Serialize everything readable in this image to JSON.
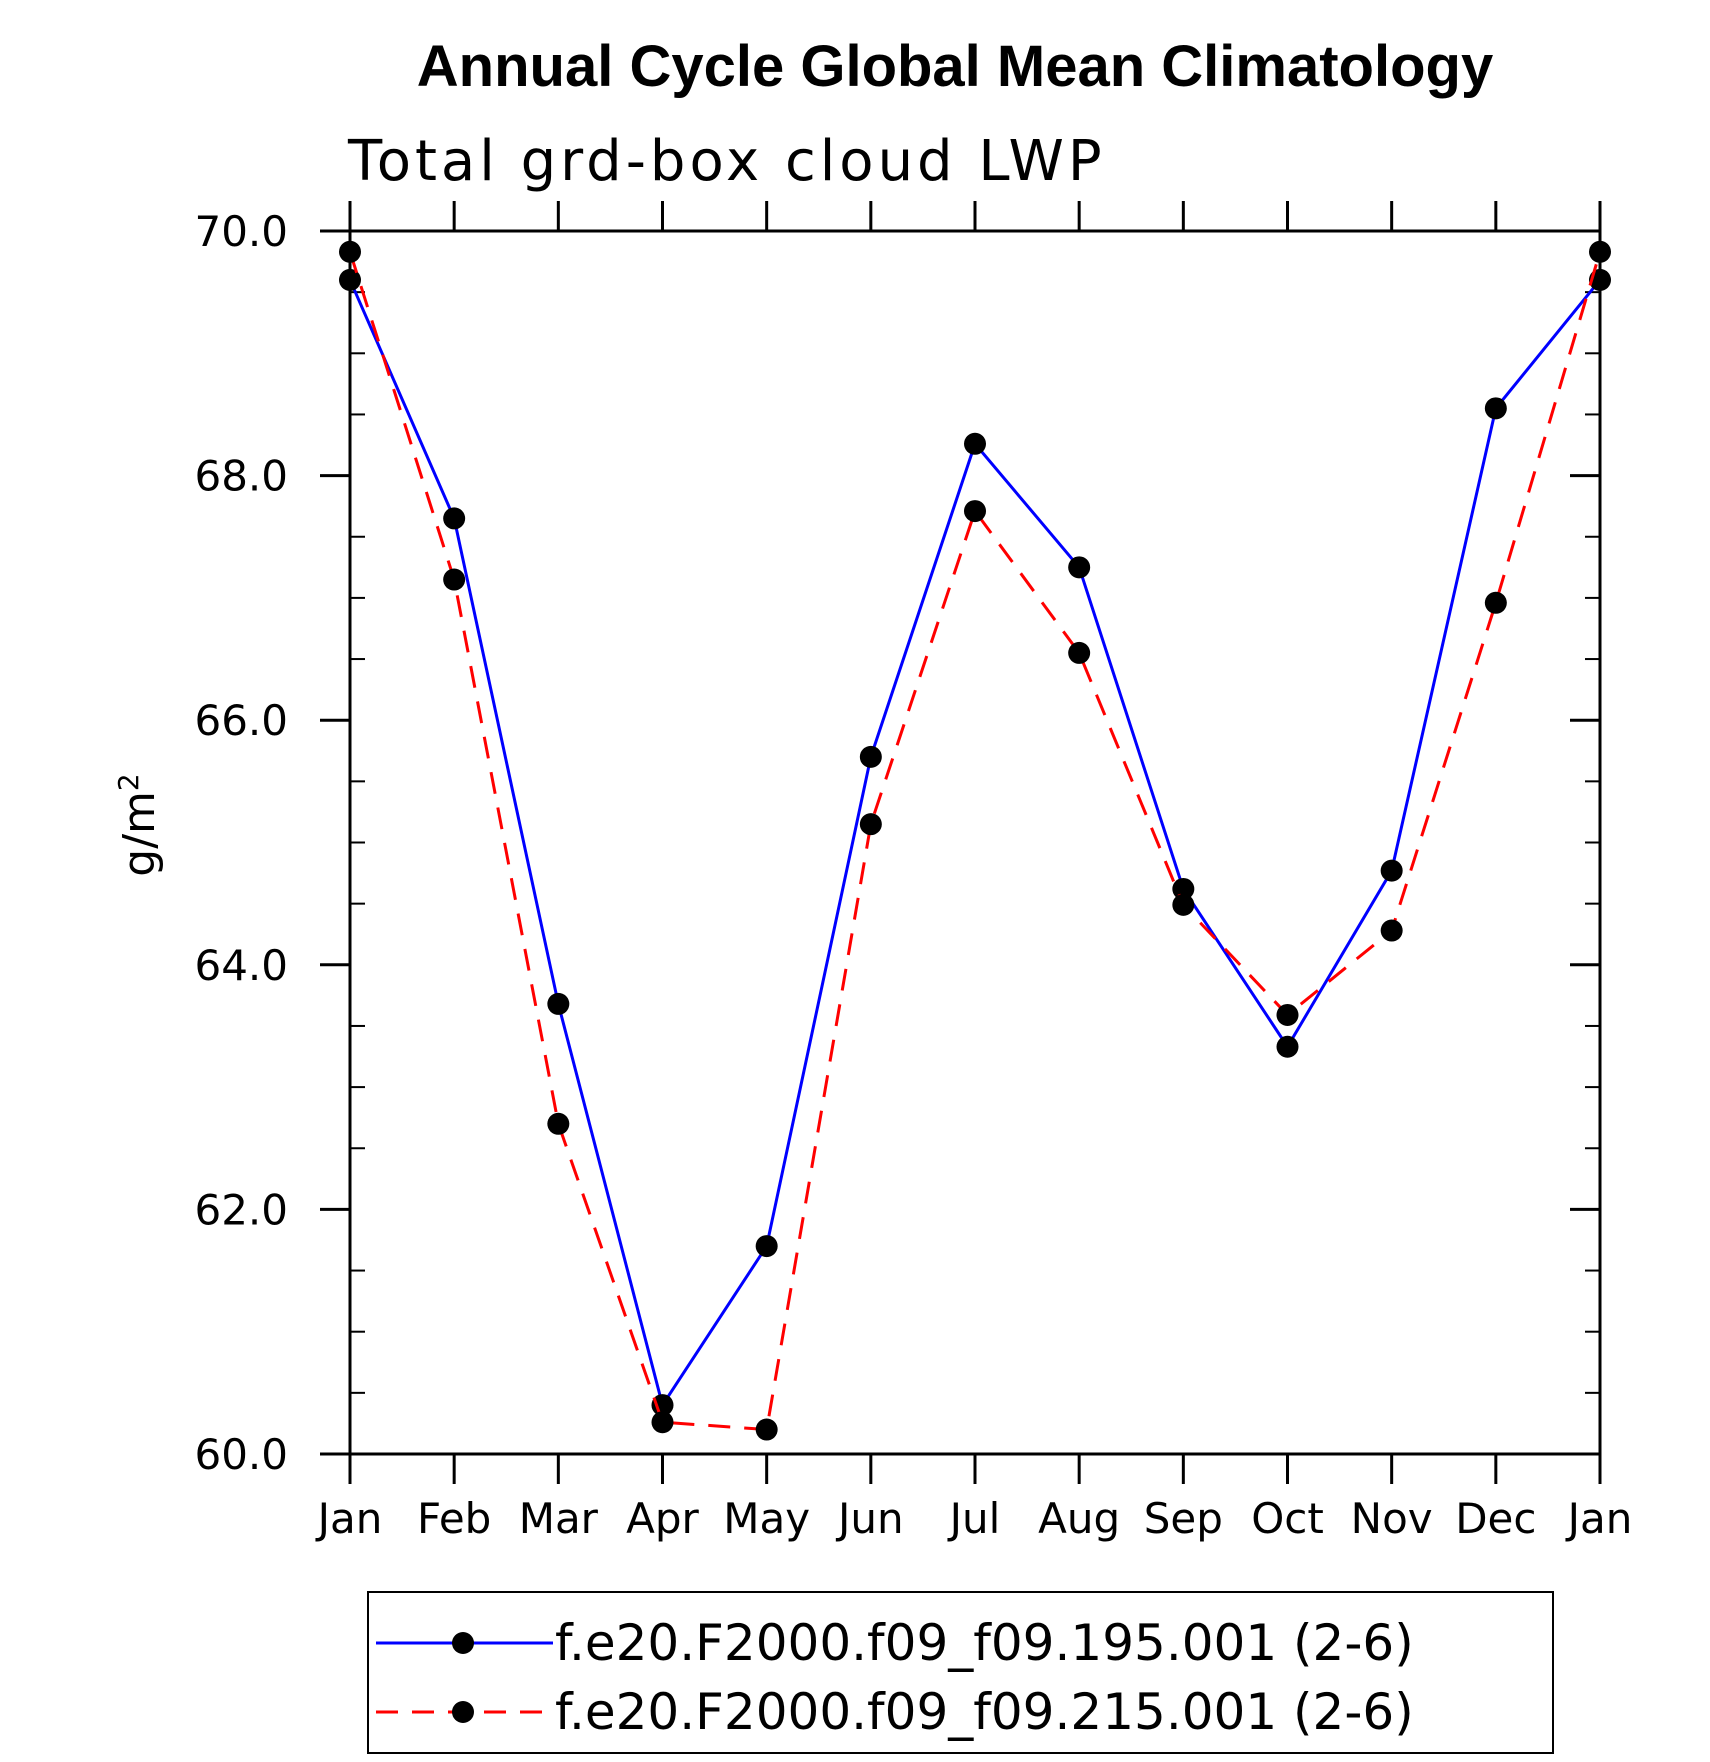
{
  "chart_data": {
    "type": "line",
    "title": "Annual Cycle Global Mean Climatology",
    "subtitle": "Total grd-box cloud LWP",
    "ylabel": "g/m",
    "ylabel_superscript": "2",
    "categories": [
      "Jan",
      "Feb",
      "Mar",
      "Apr",
      "May",
      "Jun",
      "Jul",
      "Aug",
      "Sep",
      "Oct",
      "Nov",
      "Dec",
      "Jan"
    ],
    "ylim": [
      60.0,
      70.0
    ],
    "yticks": [
      "60.0",
      "62.0",
      "64.0",
      "66.0",
      "68.0",
      "70.0"
    ],
    "grid": false,
    "legend_position": "bottom",
    "series": [
      {
        "name": "f.e20.F2000.f09_f09.195.001 (2-6)",
        "color": "#0000ff",
        "style": "solid",
        "values": [
          69.6,
          67.65,
          63.68,
          60.4,
          61.7,
          65.7,
          68.26,
          67.25,
          64.62,
          63.33,
          64.77,
          68.55,
          69.6
        ]
      },
      {
        "name": "f.e20.F2000.f09_f09.215.001 (2-6)",
        "color": "#ff0000",
        "style": "dashed",
        "values": [
          69.83,
          67.15,
          62.7,
          60.26,
          60.2,
          65.15,
          67.71,
          66.55,
          64.49,
          63.59,
          64.28,
          66.96,
          69.83
        ]
      }
    ]
  }
}
